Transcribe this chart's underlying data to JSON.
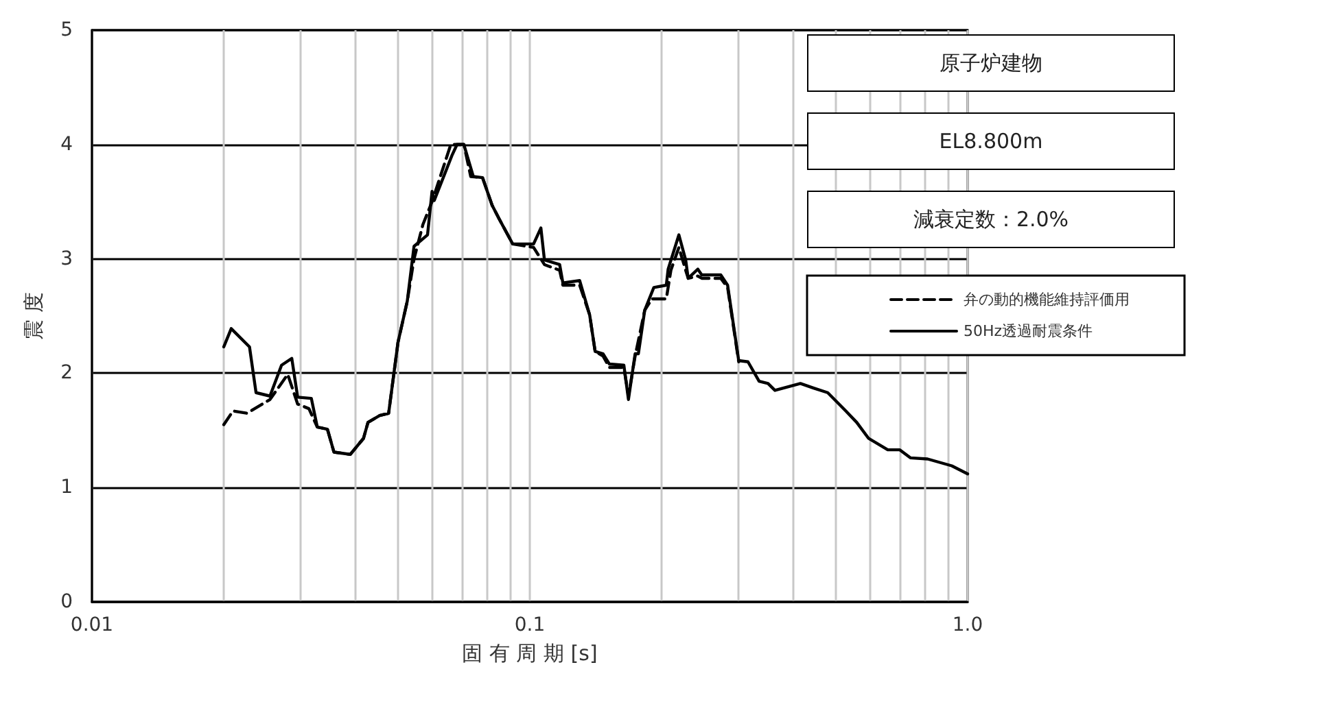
{
  "chart_data": {
    "type": "line",
    "title": "原子炉建物",
    "subtitle": "EL8.800m",
    "annotations": [
      "減衰定数：2.0%"
    ],
    "xlabel": "固 有 周 期 [s]",
    "ylabel": "震 度",
    "log": "x",
    "xlim": [
      0.01,
      1
    ],
    "ylim": [
      0,
      5
    ],
    "yticks": [
      0,
      1,
      2,
      3,
      4,
      5
    ],
    "xticks": [
      {
        "value": 0.01,
        "label": "0.01"
      },
      {
        "value": 0.02,
        "label": null
      },
      {
        "value": 0.03,
        "label": null
      },
      {
        "value": 0.04,
        "label": null
      },
      {
        "value": 0.05,
        "label": null
      },
      {
        "value": 0.06,
        "label": null
      },
      {
        "value": 0.07,
        "label": null
      },
      {
        "value": 0.08,
        "label": null
      },
      {
        "value": 0.09,
        "label": null
      },
      {
        "value": 0.1,
        "label": "0.1"
      },
      {
        "value": 0.2,
        "label": null
      },
      {
        "value": 0.3,
        "label": null
      },
      {
        "value": 0.4,
        "label": null
      },
      {
        "value": 0.5,
        "label": null
      },
      {
        "value": 0.6,
        "label": null
      },
      {
        "value": 0.7,
        "label": null
      },
      {
        "value": 0.8,
        "label": null
      },
      {
        "value": 0.9,
        "label": null
      },
      {
        "value": 1,
        "label": "1.0"
      }
    ],
    "grid": true,
    "legend": "top right",
    "marker": "none",
    "series": [
      {
        "name": "弁の動的機能維持評価用",
        "color": "#000000",
        "line_style": "dashed",
        "x": [
          0.02,
          0.021,
          0.0226,
          0.0255,
          0.028,
          0.0295,
          0.0313,
          0.0327,
          0.0345,
          0.0357,
          0.0389,
          0.0417,
          0.0427,
          0.0454,
          0.0476,
          0.05,
          0.0525,
          0.0544,
          0.057,
          0.0598,
          0.066,
          0.0682,
          0.0707,
          0.0733,
          0.078,
          0.082,
          0.0851,
          0.0914,
          0.102,
          0.108,
          0.117,
          0.119,
          0.13,
          0.137,
          0.141,
          0.147,
          0.152,
          0.164,
          0.168,
          0.174,
          0.183,
          0.19,
          0.205,
          0.21,
          0.219,
          0.227,
          0.23,
          0.242,
          0.247,
          0.273,
          0.283,
          0.3
        ],
        "values": [
          1.55,
          1.67,
          1.65,
          1.77,
          1.99,
          1.73,
          1.69,
          1.53,
          1.51,
          1.31,
          1.29,
          1.43,
          1.57,
          1.63,
          1.65,
          2.27,
          2.63,
          3.0,
          3.3,
          3.5,
          4.0,
          4.0,
          4.0,
          3.72,
          3.71,
          3.47,
          3.35,
          3.13,
          3.1,
          2.95,
          2.9,
          2.77,
          2.77,
          2.51,
          2.19,
          2.15,
          2.05,
          2.05,
          1.8,
          2.15,
          2.55,
          2.65,
          2.65,
          2.9,
          3.1,
          2.9,
          2.83,
          2.85,
          2.83,
          2.83,
          2.75,
          2.1
        ]
      },
      {
        "name": "50Hz透過耐震条件",
        "color": "#000000",
        "line_style": "solid",
        "x": [
          0.02,
          0.0208,
          0.0229,
          0.0237,
          0.0255,
          0.0271,
          0.0286,
          0.0295,
          0.0317,
          0.0327,
          0.0345,
          0.0357,
          0.0389,
          0.0417,
          0.0427,
          0.0454,
          0.0476,
          0.05,
          0.0525,
          0.0544,
          0.0584,
          0.0598,
          0.0605,
          0.0665,
          0.0682,
          0.0707,
          0.0743,
          0.078,
          0.082,
          0.0851,
          0.0914,
          0.102,
          0.106,
          0.108,
          0.117,
          0.119,
          0.13,
          0.137,
          0.141,
          0.147,
          0.152,
          0.164,
          0.168,
          0.174,
          0.177,
          0.183,
          0.192,
          0.205,
          0.207,
          0.219,
          0.227,
          0.23,
          0.242,
          0.247,
          0.273,
          0.283,
          0.3,
          0.315,
          0.334,
          0.35,
          0.363,
          0.415,
          0.445,
          0.479,
          0.527,
          0.558,
          0.594,
          0.657,
          0.7,
          0.74,
          0.81,
          0.92,
          1
        ],
        "values": [
          2.23,
          2.39,
          2.23,
          1.83,
          1.8,
          2.07,
          2.13,
          1.79,
          1.78,
          1.53,
          1.51,
          1.31,
          1.29,
          1.43,
          1.57,
          1.63,
          1.65,
          2.27,
          2.63,
          3.11,
          3.21,
          3.59,
          3.51,
          3.91,
          4.0,
          4.0,
          3.72,
          3.71,
          3.47,
          3.35,
          3.13,
          3.13,
          3.27,
          2.99,
          2.95,
          2.79,
          2.81,
          2.51,
          2.19,
          2.17,
          2.08,
          2.07,
          1.77,
          2.17,
          2.17,
          2.55,
          2.75,
          2.77,
          2.91,
          3.21,
          2.99,
          2.83,
          2.91,
          2.86,
          2.86,
          2.77,
          2.11,
          2.1,
          1.93,
          1.91,
          1.85,
          1.91,
          1.87,
          1.83,
          1.67,
          1.57,
          1.43,
          1.33,
          1.33,
          1.26,
          1.25,
          1.19,
          1.12
        ]
      }
    ]
  }
}
